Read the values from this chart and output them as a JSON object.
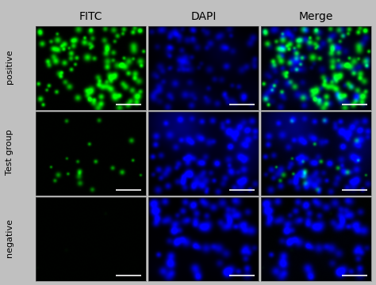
{
  "col_labels": [
    "FITC",
    "DAPI",
    "Merge"
  ],
  "row_labels": [
    "positive",
    "Test group",
    "negative"
  ],
  "col_label_fontsize": 10,
  "row_label_fontsize": 8,
  "fig_bg": "#c0c0c0",
  "rows": [
    {
      "name": "positive",
      "fitc_num_cells": 120,
      "fitc_intensity": 0.95,
      "fitc_cell_sigma": 5,
      "dapi_num_cells": 100,
      "dapi_intensity": 0.55,
      "dapi_cell_sigma": 6,
      "dapi_bg_intensity": 0.18
    },
    {
      "name": "Test group",
      "fitc_num_cells": 20,
      "fitc_intensity": 0.7,
      "fitc_cell_sigma": 4,
      "dapi_num_cells": 100,
      "dapi_intensity": 0.85,
      "dapi_cell_sigma": 6,
      "dapi_bg_intensity": 0.45
    },
    {
      "name": "negative",
      "fitc_num_cells": 3,
      "fitc_intensity": 0.05,
      "fitc_cell_sigma": 4,
      "dapi_num_cells": 90,
      "dapi_intensity": 0.85,
      "dapi_cell_sigma": 7,
      "dapi_bg_intensity": 0.05
    }
  ]
}
